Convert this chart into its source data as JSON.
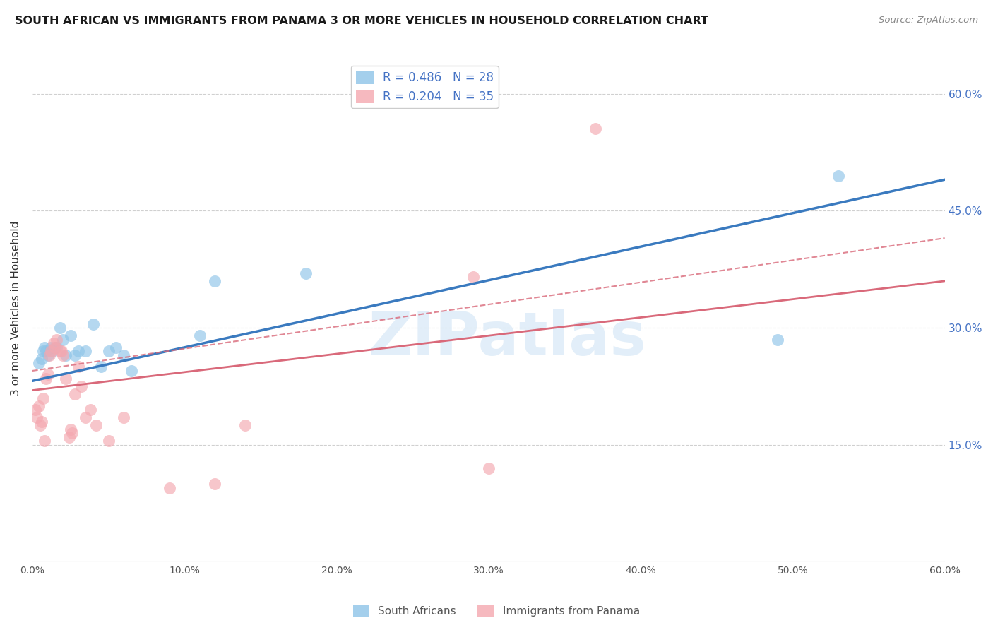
{
  "title": "SOUTH AFRICAN VS IMMIGRANTS FROM PANAMA 3 OR MORE VEHICLES IN HOUSEHOLD CORRELATION CHART",
  "source": "Source: ZipAtlas.com",
  "ylabel": "3 or more Vehicles in Household",
  "xmin": 0.0,
  "xmax": 0.6,
  "ymin": 0.0,
  "ymax": 0.65,
  "xtick_positions": [
    0.0,
    0.1,
    0.2,
    0.3,
    0.4,
    0.5,
    0.6
  ],
  "xtick_labels": [
    "0.0%",
    "10.0%",
    "20.0%",
    "30.0%",
    "40.0%",
    "50.0%",
    "60.0%"
  ],
  "ytick_vals": [
    0.15,
    0.3,
    0.45,
    0.6
  ],
  "right_ytick_labels": [
    "15.0%",
    "30.0%",
    "45.0%",
    "60.0%"
  ],
  "legend_label1": "R = 0.486   N = 28",
  "legend_label2": "R = 0.204   N = 35",
  "blue_color": "#8ec4e8",
  "pink_color": "#f4a8b0",
  "blue_line_color": "#3a7abf",
  "pink_line_color": "#d9697a",
  "watermark_text": "ZIPatlas",
  "blue_scatter_x": [
    0.004,
    0.006,
    0.007,
    0.008,
    0.009,
    0.01,
    0.012,
    0.013,
    0.015,
    0.016,
    0.018,
    0.02,
    0.022,
    0.025,
    0.028,
    0.03,
    0.035,
    0.04,
    0.045,
    0.05,
    0.055,
    0.06,
    0.065,
    0.11,
    0.12,
    0.18,
    0.49,
    0.53
  ],
  "blue_scatter_y": [
    0.255,
    0.26,
    0.27,
    0.275,
    0.27,
    0.265,
    0.275,
    0.27,
    0.275,
    0.275,
    0.3,
    0.285,
    0.265,
    0.29,
    0.265,
    0.27,
    0.27,
    0.305,
    0.25,
    0.27,
    0.275,
    0.265,
    0.245,
    0.29,
    0.36,
    0.37,
    0.285,
    0.495
  ],
  "pink_scatter_x": [
    0.002,
    0.003,
    0.004,
    0.005,
    0.006,
    0.007,
    0.008,
    0.009,
    0.01,
    0.011,
    0.012,
    0.014,
    0.015,
    0.016,
    0.018,
    0.019,
    0.02,
    0.022,
    0.024,
    0.025,
    0.026,
    0.028,
    0.03,
    0.032,
    0.035,
    0.038,
    0.042,
    0.05,
    0.06,
    0.09,
    0.12,
    0.14,
    0.29,
    0.3,
    0.37
  ],
  "pink_scatter_y": [
    0.195,
    0.185,
    0.2,
    0.175,
    0.18,
    0.21,
    0.155,
    0.235,
    0.24,
    0.265,
    0.27,
    0.28,
    0.275,
    0.285,
    0.27,
    0.27,
    0.265,
    0.235,
    0.16,
    0.17,
    0.165,
    0.215,
    0.25,
    0.225,
    0.185,
    0.195,
    0.175,
    0.155,
    0.185,
    0.095,
    0.1,
    0.175,
    0.365,
    0.12,
    0.555
  ],
  "blue_line_y_start": 0.232,
  "blue_line_y_end": 0.49,
  "pink_line_y_start": 0.22,
  "pink_line_y_end": 0.36,
  "pink_dashed_line_y_start": 0.245,
  "pink_dashed_line_y_end": 0.415,
  "grid_color": "#d0d0d0",
  "right_axis_color": "#4472c4",
  "title_color": "#1a1a1a",
  "source_color": "#888888",
  "ylabel_color": "#333333",
  "background_color": "#ffffff",
  "watermark_color": "#d0e4f5",
  "watermark_alpha": 0.6
}
